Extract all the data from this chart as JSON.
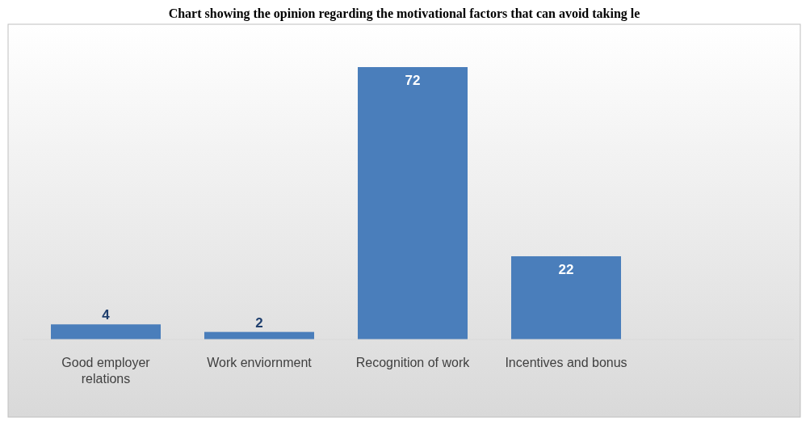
{
  "chart_data": {
    "type": "bar",
    "title": "Chart showing the opinion regarding the motivational factors that can avoid taking le",
    "categories": [
      "Good employer relations",
      "Work enviornment",
      "Recognition of work",
      "Incentives and bonus"
    ],
    "values": [
      4,
      2,
      72,
      22
    ],
    "color": "#4a7ebb",
    "data_labels": true
  }
}
